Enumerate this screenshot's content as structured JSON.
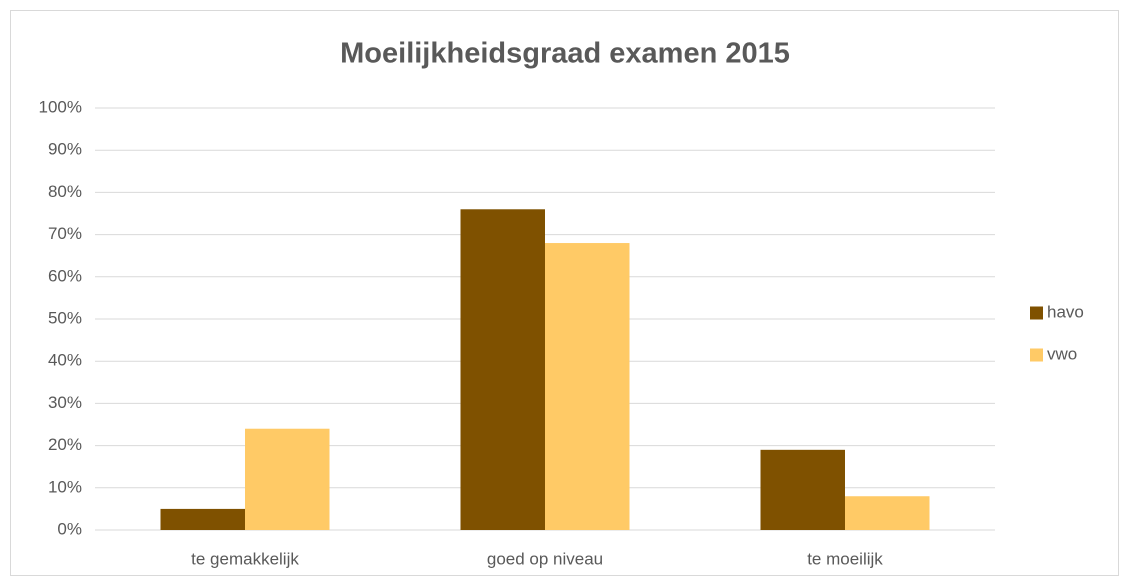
{
  "chart_data": {
    "type": "bar",
    "title": "Moeilijkheidsgraad examen 2015",
    "categories": [
      "te gemakkelijk",
      "goed op niveau",
      "te moeilijk"
    ],
    "series": [
      {
        "name": "havo",
        "color": "#7f5100",
        "values": [
          5,
          76,
          19
        ]
      },
      {
        "name": "vwo",
        "color": "#ffca66",
        "values": [
          24,
          68,
          8
        ]
      }
    ],
    "ylim": [
      0,
      100
    ],
    "yticks": [
      {
        "value": 0,
        "label": "0%"
      },
      {
        "value": 10,
        "label": "10%"
      },
      {
        "value": 20,
        "label": "20%"
      },
      {
        "value": 30,
        "label": "30%"
      },
      {
        "value": 40,
        "label": "40%"
      },
      {
        "value": 50,
        "label": "50%"
      },
      {
        "value": 60,
        "label": "60%"
      },
      {
        "value": 70,
        "label": "70%"
      },
      {
        "value": 80,
        "label": "80%"
      },
      {
        "value": 90,
        "label": "90%"
      },
      {
        "value": 100,
        "label": "100%"
      }
    ],
    "grid": true,
    "legend": "right"
  }
}
